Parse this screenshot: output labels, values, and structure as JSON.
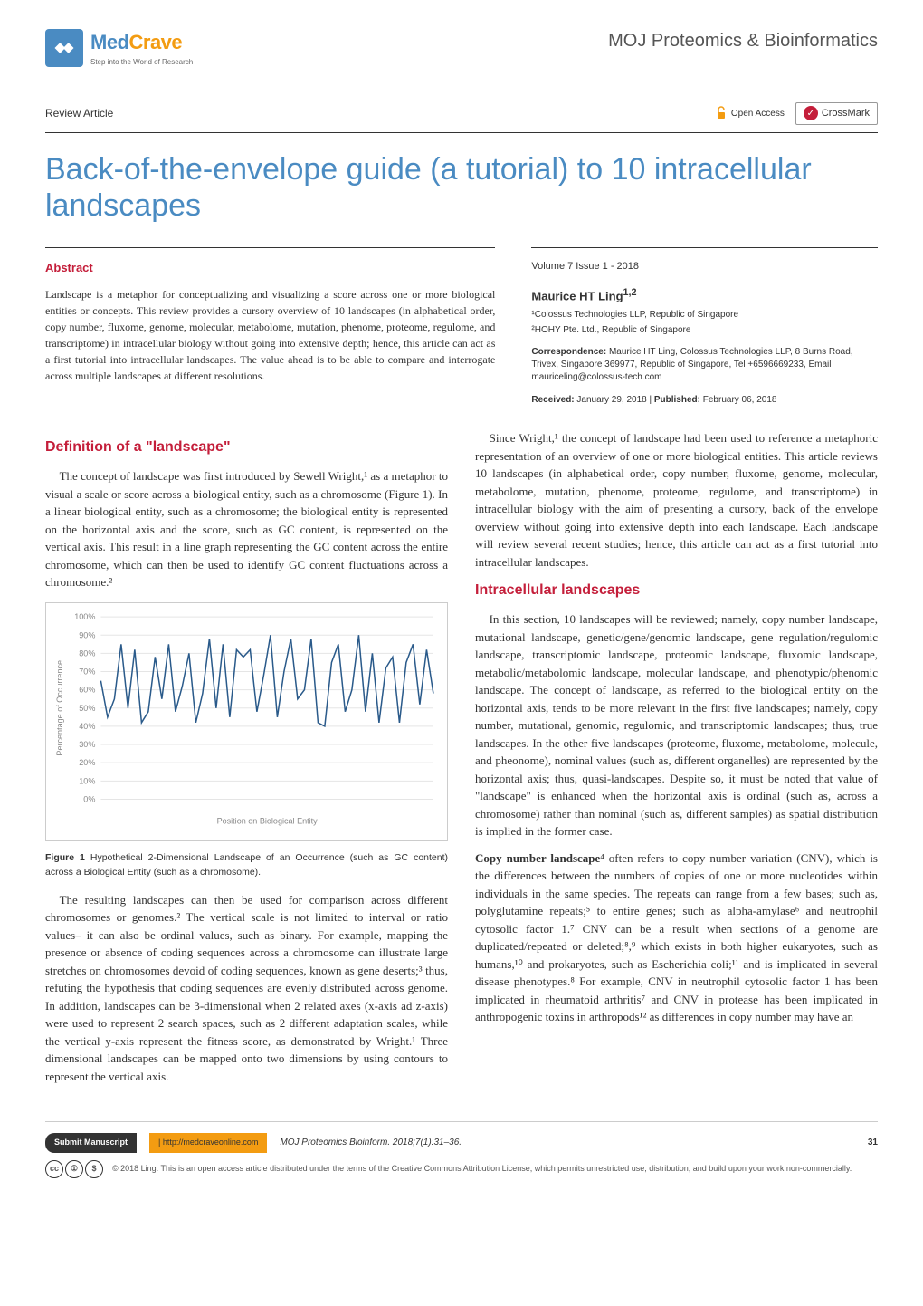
{
  "header": {
    "logo_name_med": "Med",
    "logo_name_crave": "Crave",
    "logo_tagline": "Step into the World of Research",
    "journal_name": "MOJ Proteomics & Bioinformatics"
  },
  "badges": {
    "article_type": "Review Article",
    "open_access": "Open Access",
    "crossmark": "CrossMark"
  },
  "title": "Back-of-the-envelope guide (a tutorial) to 10 intracellular landscapes",
  "abstract": {
    "heading": "Abstract",
    "text": "Landscape is a metaphor for conceptualizing and visualizing a score across one or more biological entities or concepts. This review provides a cursory overview of 10 landscapes (in alphabetical order, copy number, fluxome, genome, molecular, metabolome, mutation, phenome, proteome, regulome, and transcriptome) in intracellular biology without going into extensive depth; hence, this article can act as a first tutorial into intracellular landscapes. The value ahead is to be able to compare and interrogate across multiple landscapes at different resolutions."
  },
  "meta": {
    "volume_issue": "Volume 7 Issue 1 - 2018",
    "author": "Maurice HT Ling",
    "author_sup": "1,2",
    "affiliations": [
      "¹Colossus Technologies LLP, Republic of Singapore",
      "²HOHY Pte. Ltd., Republic of Singapore"
    ],
    "correspondence_label": "Correspondence:",
    "correspondence_text": " Maurice HT Ling, Colossus Technologies LLP, 8 Burns Road, Trivex, Singapore 369977, Republic of Singapore, Tel +6596669233, Email mauriceling@colossus-tech.com",
    "received_label": "Received:",
    "received_text": " January 29, 2018 | ",
    "published_label": "Published:",
    "published_text": " February 06, 2018"
  },
  "sections": {
    "s1_heading": "Definition of a \"landscape\"",
    "s1_p1": "The concept of landscape was first introduced by Sewell Wright,¹ as a metaphor to visual a scale or score across a biological entity, such as a chromosome (Figure 1). In a linear biological entity, such as a chromosome; the biological entity is represented on the horizontal axis and the score, such as GC content, is represented on the vertical axis. This result in a line graph representing the GC content across the entire chromosome, which can then be used to identify GC content fluctuations across a chromosome.²",
    "s1_p2": "The resulting landscapes can then be used for comparison across different chromosomes or genomes.² The vertical scale is not limited to interval or ratio values– it can also be ordinal values, such as binary. For example, mapping the presence or absence of coding sequences across a chromosome can illustrate large stretches on chromosomes devoid of coding sequences, known as gene deserts;³ thus, refuting the hypothesis that coding sequences are evenly distributed across genome. In addition, landscapes can be 3-dimensional when 2 related axes (x-axis ad z-axis) were used to represent 2 search spaces, such as 2 different adaptation scales, while the vertical y-axis represent the fitness score, as demonstrated by Wright.¹ Three dimensional landscapes can be mapped onto two dimensions by using contours to represent the vertical axis.",
    "s1_p3": "Since Wright,¹ the concept of landscape had been used to reference a metaphoric representation of an overview of one or more biological entities. This article reviews 10 landscapes (in alphabetical order, copy number, fluxome, genome, molecular, metabolome, mutation, phenome, proteome, regulome, and transcriptome) in intracellular biology with the aim of presenting a cursory, back of the envelope overview without going into extensive depth into each landscape. Each landscape will review several recent studies; hence, this article can act as a first tutorial into intracellular landscapes.",
    "s2_heading": "Intracellular landscapes",
    "s2_p1": "In this section, 10 landscapes will be reviewed; namely, copy number landscape, mutational landscape, genetic/gene/genomic landscape, gene regulation/regulomic landscape, transcriptomic landscape, proteomic landscape, fluxomic landscape, metabolic/metabolomic landscape, molecular landscape, and phenotypic/phenomic landscape. The concept of landscape, as referred to the biological entity on the horizontal axis, tends to be more relevant in the first five landscapes; namely, copy number, mutational, genomic, regulomic, and transcriptomic landscapes; thus, true landscapes. In the other five landscapes (proteome, fluxome, metabolome, molecule, and pheonome), nominal values (such as, different organelles) are represented by the horizontal axis; thus, quasi-landscapes. Despite so, it must be noted that value of \"landscape\" is enhanced when the horizontal axis is ordinal (such as, across a chromosome) rather than nominal (such as, different samples) as spatial distribution is implied in the former case.",
    "s2_p2_label": "Copy number landscape",
    "s2_p2": "⁴ often refers to copy number variation (CNV), which is the differences between the numbers of copies of one or more nucleotides within individuals in the same species. The repeats can range from a few bases; such as, polyglutamine repeats;⁵ to entire genes; such as alpha-amylase⁶ and neutrophil cytosolic factor 1.⁷ CNV can be a result when sections of a genome are duplicated/repeated or deleted;⁸,⁹ which exists in both higher eukaryotes, such as humans,¹⁰ and prokaryotes, such as Escherichia coli;¹¹ and is implicated in several disease phenotypes.⁸ For example, CNV in neutrophil cytosolic factor 1 has been implicated in rheumatoid arthritis⁷ and CNV in protease has been implicated in anthropogenic toxins in arthropods¹² as differences in copy number may have an"
  },
  "figure1": {
    "type": "line",
    "caption_label": "Figure 1",
    "caption_text": " Hypothetical 2-Dimensional Landscape of an Occurrence (such as GC content) across a Biological Entity (such as a chromosome).",
    "ylabel": "Percentage of Occurrence",
    "xlabel": "Position on Biological Entity",
    "ylim": [
      0,
      100
    ],
    "ytick_step": 10,
    "ytick_labels": [
      "0%",
      "10%",
      "20%",
      "30%",
      "40%",
      "50%",
      "60%",
      "70%",
      "80%",
      "90%",
      "100%"
    ],
    "values": [
      65,
      45,
      55,
      85,
      50,
      82,
      42,
      48,
      78,
      55,
      85,
      48,
      62,
      80,
      42,
      58,
      88,
      50,
      85,
      45,
      82,
      78,
      82,
      48,
      68,
      90,
      45,
      70,
      88,
      55,
      60,
      88,
      42,
      40,
      75,
      85,
      48,
      60,
      90,
      48,
      80,
      42,
      72,
      78,
      42,
      75,
      85,
      52,
      82,
      58
    ],
    "line_color": "#2a5a8a",
    "line_width": 1.5,
    "grid_color": "#e5e5e5",
    "background_color": "#ffffff",
    "axis_color": "#888888",
    "label_color": "#888888",
    "label_fontsize": 9,
    "tick_fontsize": 9
  },
  "footer": {
    "submit_label": "Submit Manuscript",
    "submit_url": " | http://medcraveonline.com",
    "citation": "MOJ Proteomics Bioinform. 2018;7(1):31‒36.",
    "page_number": "31",
    "license_text": "© 2018 Ling. This is an open access article distributed under the terms of the Creative Commons Attribution License, which permits unrestricted use, distribution, and build upon your work non-commercially.",
    "cc_labels": [
      "cc",
      "①",
      "$"
    ]
  }
}
